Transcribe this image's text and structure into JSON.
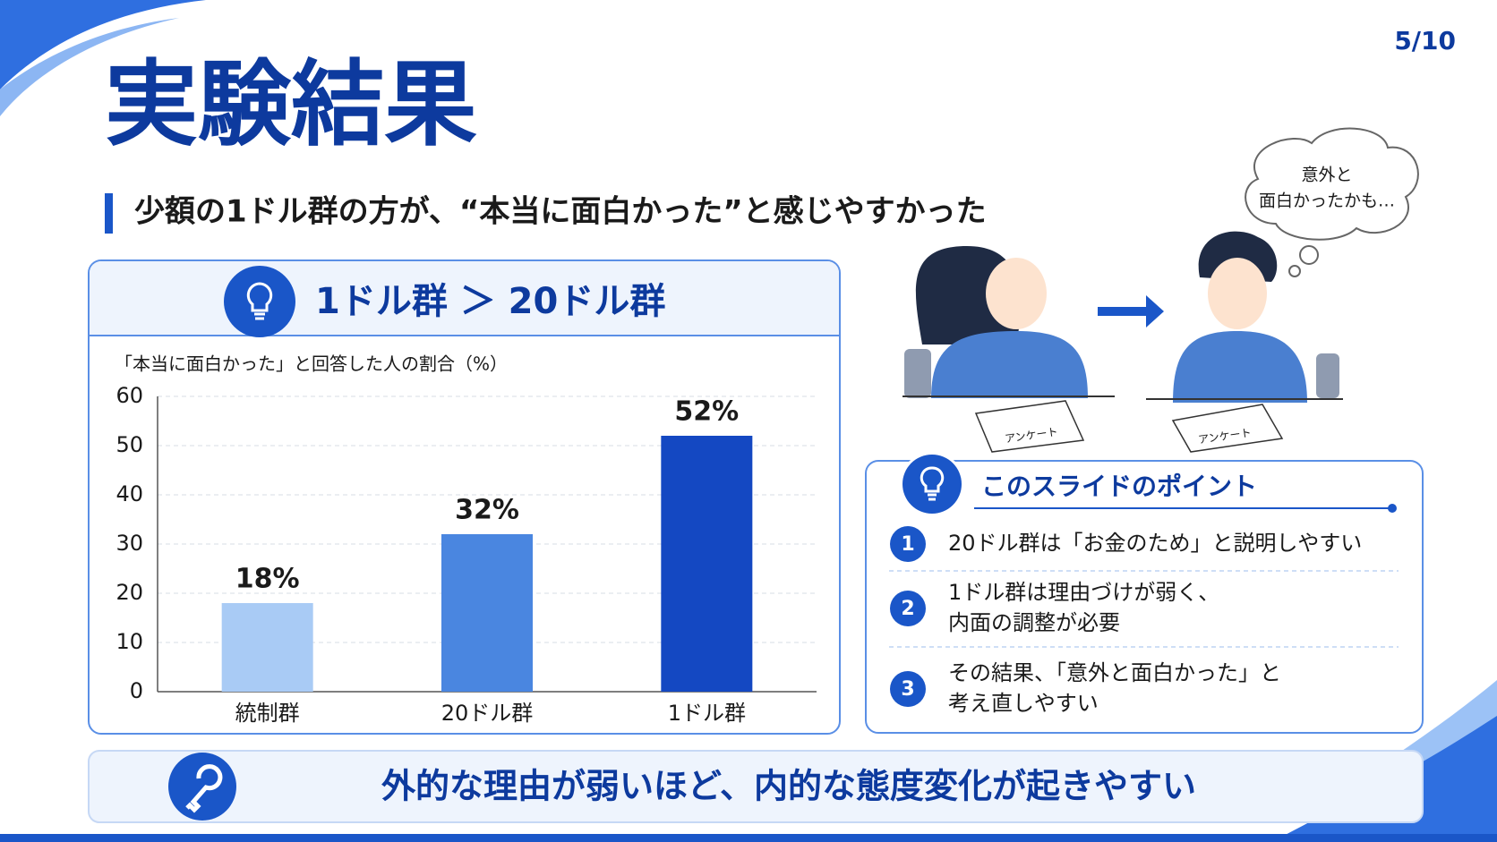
{
  "page_number": "5/10",
  "title": "実験結果",
  "subtitle": "少額の1ドル群の方が、“本当に面白かった”と感じやすかった",
  "chart_panel": {
    "heading": "1ドル群 ＞ 20ドル群"
  },
  "chart_data": {
    "type": "bar",
    "y_label": "「本当に面白かった」と回答した人の割合（%）",
    "categories": [
      "統制群",
      "20ドル群",
      "1ドル群"
    ],
    "values": [
      18,
      32,
      52
    ],
    "value_labels": [
      "18%",
      "32%",
      "52%"
    ],
    "colors": [
      "#a9cbf5",
      "#4a86e0",
      "#1448c2"
    ],
    "ylim": [
      0,
      60
    ],
    "yticks": [
      0,
      10,
      20,
      30,
      40,
      50,
      60
    ],
    "grid": true
  },
  "illustration": {
    "thought": [
      "意外と",
      "面白かったかも…"
    ],
    "paper_left": "アンケート",
    "paper_right": "アンケート"
  },
  "points": {
    "title": "このスライドのポイント",
    "items": [
      {
        "number": "1",
        "lines": [
          "20ドル群は「お金のため」と説明しやすい"
        ]
      },
      {
        "number": "2",
        "lines": [
          "1ドル群は理由づけが弱く、",
          "内面の調整が必要"
        ]
      },
      {
        "number": "3",
        "lines": [
          "その結果、「意外と面白かった」と",
          "考え直しやすい"
        ]
      }
    ]
  },
  "footer": "外的な理由が弱いほど、内的な態度変化が起きやすい"
}
